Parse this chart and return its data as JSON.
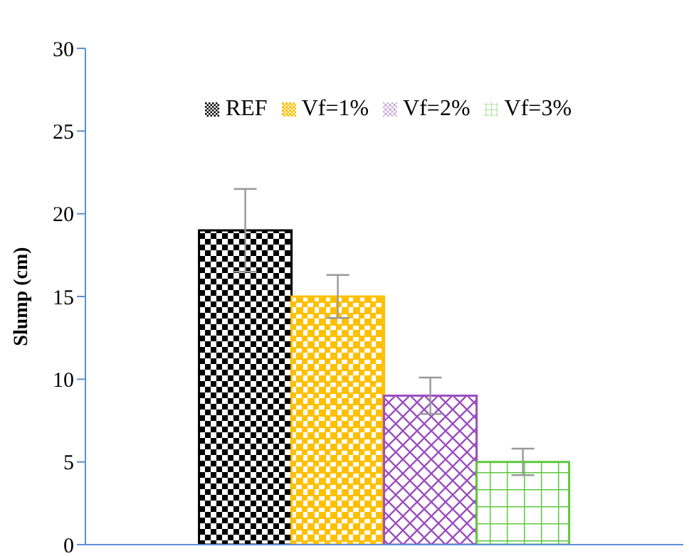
{
  "chart_data": {
    "type": "bar",
    "ylabel": "Slump (cm)",
    "categories": [
      null
    ],
    "series": [
      {
        "name": "REF",
        "color": "#000000",
        "values": [
          19
        ],
        "errors": [
          2.5
        ]
      },
      {
        "name": "Vf=1%",
        "color": "#ffc000",
        "values": [
          15
        ],
        "errors": [
          1.3
        ]
      },
      {
        "name": "Vf=2%",
        "color": "#9b4fc0",
        "values": [
          9
        ],
        "errors": [
          1.1
        ]
      },
      {
        "name": "Vf=3%",
        "color": "#5cc83c",
        "values": [
          5
        ],
        "errors": [
          0.8
        ]
      }
    ],
    "ylim": [
      0,
      30
    ],
    "yticks": [
      0,
      5,
      10,
      15,
      20,
      25,
      30
    ],
    "grid": false,
    "legend": "top"
  }
}
